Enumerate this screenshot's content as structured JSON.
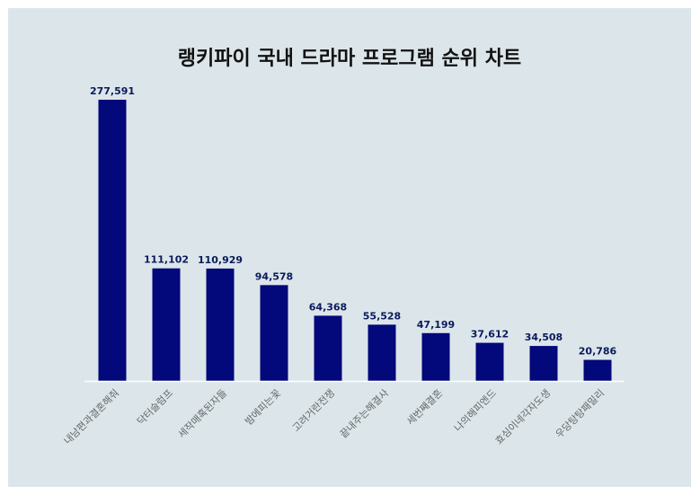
{
  "chart_data": {
    "type": "bar",
    "title": "랭키파이 국내 드라마 프로그램 순위 차트",
    "categories": [
      "내남편과결혼해줘",
      "닥터슬럼프",
      "세작매혹된자들",
      "밤에피는꽃",
      "고려거란전쟁",
      "끝내주는해결사",
      "세번째결혼",
      "나의해피엔드",
      "효심이네각자도생",
      "우당탕탕패밀리"
    ],
    "values": [
      277591,
      111102,
      110929,
      94578,
      64368,
      55528,
      47199,
      37612,
      34508,
      20786
    ],
    "value_labels": [
      "277,591",
      "111,102",
      "110,929",
      "94,578",
      "64,368",
      "55,528",
      "47,199",
      "37,612",
      "34,508",
      "20,786"
    ],
    "ylim": [
      0,
      277591
    ],
    "grid": false,
    "legend": "none",
    "colors": {
      "bar": "#03087a",
      "background": "#dce6ea",
      "axis": "#ffffff"
    }
  }
}
